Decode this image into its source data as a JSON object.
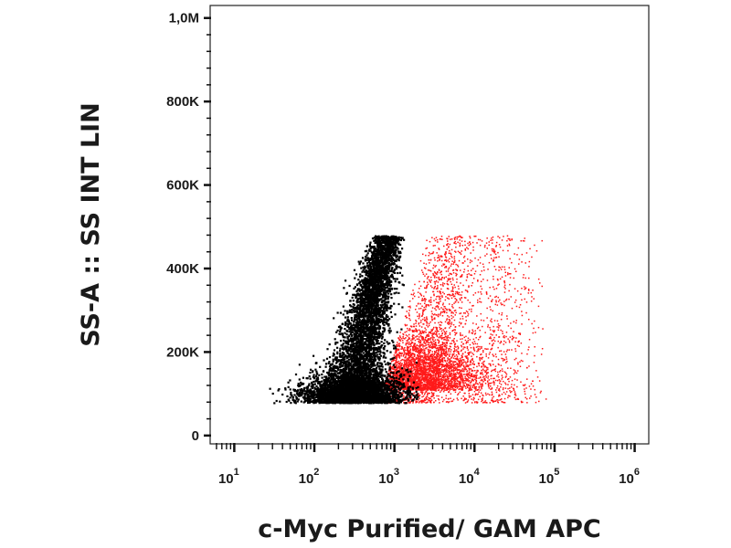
{
  "chart_data": {
    "type": "scatter",
    "title": "",
    "xlabel": "c-Myc Purified/ GAM APC",
    "ylabel": "SS-A :: SS INT LIN",
    "x_scale": "log",
    "xlim": [
      5,
      1500000
    ],
    "ylim": [
      -20000,
      1030000
    ],
    "x_ticks": [
      {
        "value": 10,
        "base": "10",
        "exp": "1"
      },
      {
        "value": 100,
        "base": "10",
        "exp": "2"
      },
      {
        "value": 1000,
        "base": "10",
        "exp": "3"
      },
      {
        "value": 10000,
        "base": "10",
        "exp": "4"
      },
      {
        "value": 100000,
        "base": "10",
        "exp": "5"
      },
      {
        "value": 1000000,
        "base": "10",
        "exp": "6"
      }
    ],
    "y_ticks": [
      {
        "value": 0,
        "label": "0"
      },
      {
        "value": 200000,
        "label": "200K"
      },
      {
        "value": 400000,
        "label": "400K"
      },
      {
        "value": 600000,
        "label": "600K"
      },
      {
        "value": 800000,
        "label": "800K"
      },
      {
        "value": 1000000,
        "label": "1,0M"
      }
    ],
    "grid": false,
    "legend": "none",
    "series": [
      {
        "color": "#ff1a1a",
        "population": "positive",
        "x_range": [
          300,
          80000
        ],
        "y_range": [
          80000,
          480000
        ],
        "density_peak": {
          "x": 2000,
          "y": 110000
        }
      },
      {
        "color": "#000000",
        "population": "negative",
        "x_range": [
          15,
          2000
        ],
        "y_range": [
          80000,
          480000
        ],
        "density_peak": {
          "x": 300,
          "y": 120000
        }
      }
    ]
  }
}
